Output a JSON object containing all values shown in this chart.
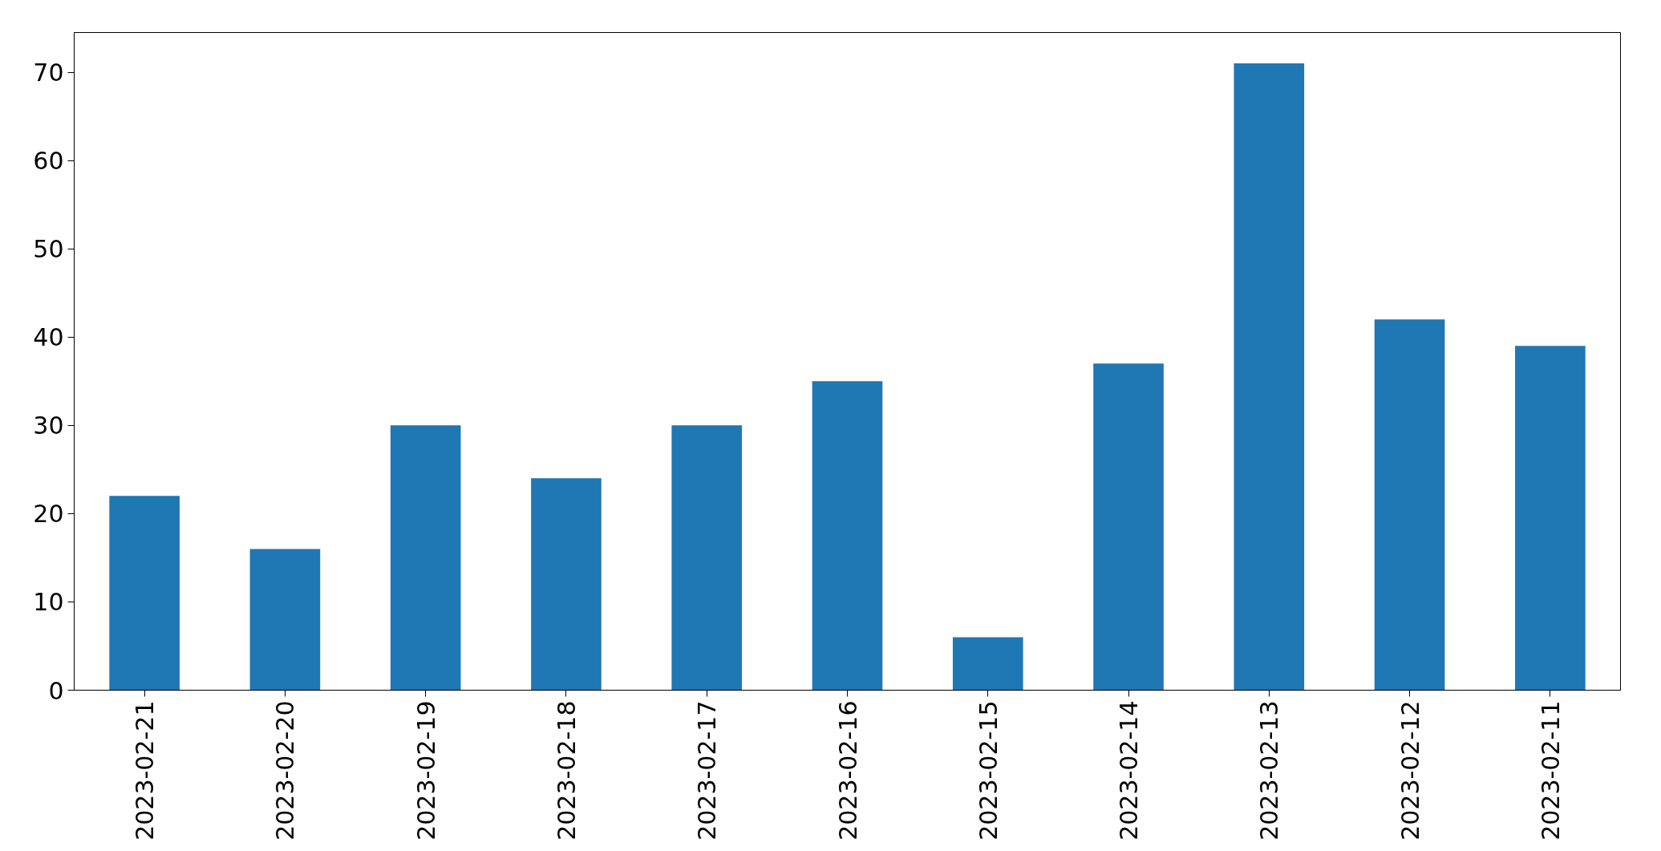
{
  "chart_data": {
    "type": "bar",
    "categories": [
      "2023-02-21",
      "2023-02-20",
      "2023-02-19",
      "2023-02-18",
      "2023-02-17",
      "2023-02-16",
      "2023-02-15",
      "2023-02-14",
      "2023-02-13",
      "2023-02-12",
      "2023-02-11"
    ],
    "values": [
      22,
      16,
      30,
      24,
      30,
      35,
      6,
      37,
      71,
      42,
      39
    ],
    "color": "#1f77b4",
    "ylim": [
      0,
      74.5
    ],
    "yticks": [
      0,
      10,
      20,
      30,
      40,
      50,
      60,
      70
    ]
  }
}
